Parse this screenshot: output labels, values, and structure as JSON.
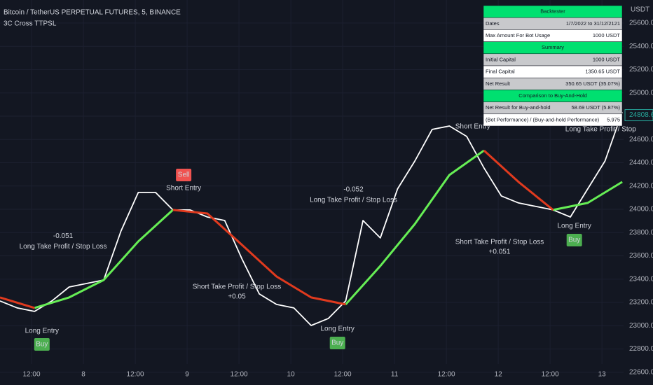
{
  "chart_data": {
    "type": "line",
    "title": "Bitcoin / TetherUS PERPETUAL FUTURES, 5, BINANCE",
    "subtitle": "3C Cross TTPSL",
    "y_unit": "USDT",
    "last_price": 24808.6,
    "last_price_color": "#26a69a",
    "grid": true,
    "xlim": [
      0,
      144.3
    ],
    "xticks": [
      {
        "value": 7.3,
        "label": "12:00"
      },
      {
        "value": 19.3,
        "label": "8"
      },
      {
        "value": 31.3,
        "label": "12:00"
      },
      {
        "value": 43.3,
        "label": "9"
      },
      {
        "value": 55.3,
        "label": "12:00"
      },
      {
        "value": 67.3,
        "label": "10"
      },
      {
        "value": 79.3,
        "label": "12:00"
      },
      {
        "value": 91.3,
        "label": "11"
      },
      {
        "value": 103.3,
        "label": "12:00"
      },
      {
        "value": 115.3,
        "label": "12"
      },
      {
        "value": 127.3,
        "label": "12:00"
      },
      {
        "value": 139.3,
        "label": "13"
      }
    ],
    "ylim": [
      22491,
      25798
    ],
    "yticks": [
      {
        "value": 22600,
        "label": "22600.0"
      },
      {
        "value": 22800,
        "label": "22800.0"
      },
      {
        "value": 23000,
        "label": "23000.0"
      },
      {
        "value": 23200,
        "label": "23200.0"
      },
      {
        "value": 23400,
        "label": "23400.0"
      },
      {
        "value": 23600,
        "label": "23600.0"
      },
      {
        "value": 23800,
        "label": "23800.0"
      },
      {
        "value": 24000,
        "label": "24000.0"
      },
      {
        "value": 24200,
        "label": "24200.0"
      },
      {
        "value": 24400,
        "label": "24400.0"
      },
      {
        "value": 24600,
        "label": "24600.0"
      },
      {
        "value": 24800,
        "label": "24800.0"
      },
      {
        "value": 25000,
        "label": "25000.0"
      },
      {
        "value": 25200,
        "label": "25200.0"
      },
      {
        "value": 25400,
        "label": "25400.0"
      },
      {
        "value": 25600,
        "label": "25600.0"
      }
    ],
    "series": [
      {
        "color": "#ffffff",
        "x": [
          0,
          4,
          8,
          12,
          16,
          20,
          24,
          28,
          32,
          36,
          40,
          44,
          48,
          52,
          56,
          60,
          64,
          68,
          72,
          76,
          80,
          84,
          88,
          92,
          96,
          100,
          104,
          108,
          112,
          116,
          120,
          124,
          128,
          132,
          136,
          140,
          144
        ],
        "values": [
          23213,
          23153,
          23123,
          23213,
          23333,
          23363,
          23393,
          23814,
          24145,
          24145,
          23995,
          23995,
          23934,
          23904,
          23573,
          23273,
          23183,
          23153,
          23002,
          23063,
          23213,
          23904,
          23754,
          24175,
          24415,
          24686,
          24716,
          24626,
          24355,
          24115,
          24055,
          24025,
          23995,
          23934,
          24175,
          24415,
          24836
        ]
      },
      {
        "color": "#66ee55",
        "x": [
          0,
          8,
          16,
          24,
          32,
          40,
          48,
          56,
          64,
          72,
          80,
          88,
          96,
          104,
          112,
          120,
          128,
          136,
          144
        ],
        "values": [
          null,
          23153,
          23243,
          23393,
          23724,
          23995,
          null,
          null,
          null,
          null,
          23183,
          23514,
          23874,
          24295,
          24505,
          null,
          23995,
          24055,
          24235
        ]
      },
      {
        "color": "#e03a1e",
        "x": [
          0,
          8,
          16,
          24,
          32,
          40,
          48,
          56,
          64,
          72,
          80,
          88,
          96,
          104,
          112,
          120,
          128,
          136,
          144
        ],
        "values": [
          23243,
          23153,
          null,
          null,
          null,
          23995,
          23964,
          23694,
          23423,
          23243,
          23183,
          null,
          null,
          null,
          24505,
          24235,
          23995,
          null,
          null
        ]
      }
    ],
    "annotations": [
      {
        "text": "-0.051",
        "x": 14.6,
        "y": 23770
      },
      {
        "text": "Long Take Profit / Stop Loss",
        "x": 14.6,
        "y": 23680
      },
      {
        "text": "Long Entry",
        "x": 9.7,
        "y": 22954
      },
      {
        "text": "Buy",
        "x": 9.7,
        "y": 22840,
        "color": "#4caf50"
      },
      {
        "text": "Sell",
        "x": 42.5,
        "y": 24295,
        "color": "#f05350"
      },
      {
        "text": "Short Entry",
        "x": 42.5,
        "y": 24181
      },
      {
        "text": "Short Take Profit / Stop Loss",
        "x": 54.8,
        "y": 23333
      },
      {
        "text": "+0.05",
        "x": 54.8,
        "y": 23249
      },
      {
        "text": "-0.052",
        "x": 81.8,
        "y": 24169
      },
      {
        "text": "Long Take Profit / Stop Loss",
        "x": 81.8,
        "y": 24079
      },
      {
        "text": "Long Entry",
        "x": 78.1,
        "y": 22972
      },
      {
        "text": "Buy",
        "x": 78.1,
        "y": 22852,
        "color": "#4caf50"
      },
      {
        "text": "Short Entry",
        "x": 109.4,
        "y": 24710
      },
      {
        "text": "Short Take Profit / Stop Loss",
        "x": 115.6,
        "y": 23718
      },
      {
        "text": "+0.051",
        "x": 115.6,
        "y": 23634
      },
      {
        "text": "Long Entry",
        "x": 132.9,
        "y": 23856
      },
      {
        "text": "Buy",
        "x": 132.9,
        "y": 23736,
        "color": "#4caf50"
      },
      {
        "text": "Long Take Profit / Stop",
        "x": 139,
        "y": 24686
      }
    ]
  },
  "table": {
    "rows": [
      [
        "Backtester"
      ],
      [
        "Dates",
        "1/7/2022 to 31/12/2121"
      ],
      [
        "Max Amount For Bot Usage",
        "1000 USDT"
      ],
      [
        "Summary"
      ],
      [
        "Initial Capital",
        "1000 USDT"
      ],
      [
        "Final Capital",
        "1350.65 USDT"
      ],
      [
        "Net Result",
        "350.65 USDT (35.07%)"
      ],
      [
        "Comparison to Buy-And-Hold"
      ],
      [
        "Net Result for Buy-and-hold",
        "58.69 USDT (5.87%)"
      ],
      [
        "(Bot Performance) / (Buy-and-hold Performance)",
        "5.975"
      ]
    ]
  }
}
